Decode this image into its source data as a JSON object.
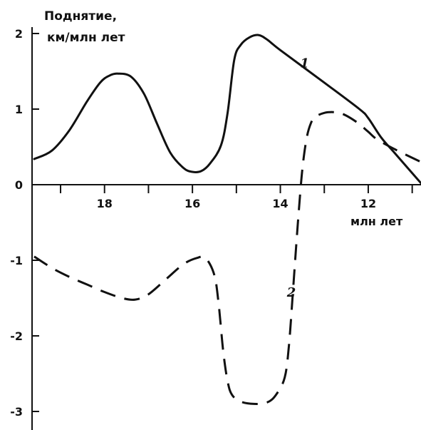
{
  "chart_data": {
    "type": "line",
    "ylabel_line1": "Поднятие,",
    "ylabel_line2": "км/млн лет",
    "xlabel": "млн лет",
    "xlim": [
      19.6,
      10.8
    ],
    "ylim": [
      -3.4,
      2.2
    ],
    "x_ticks": [
      18,
      16,
      14,
      12
    ],
    "x_tick_labels": [
      "18",
      "16",
      "14",
      "12"
    ],
    "x_minor_ticks": [
      19,
      17,
      15,
      13,
      11
    ],
    "y_ticks": [
      2,
      1,
      0,
      -1,
      -2,
      -3
    ],
    "y_tick_labels": [
      "2",
      "1",
      "0",
      "-1",
      "-2",
      "-3"
    ],
    "series": [
      {
        "name": "1",
        "style": "solid",
        "color": "#111111",
        "x": [
          19.6,
          19.2,
          18.8,
          18.4,
          18.1,
          17.9,
          17.7,
          17.4,
          17.1,
          16.8,
          16.5,
          16.2,
          16.0,
          15.8,
          15.6,
          15.35,
          15.2,
          15.05,
          14.9,
          14.7,
          14.5,
          14.3,
          14.0,
          13.0,
          12.2,
          12.0,
          11.7,
          11.4,
          10.8
        ],
        "y": [
          0.34,
          0.45,
          0.72,
          1.1,
          1.35,
          1.44,
          1.47,
          1.43,
          1.2,
          0.8,
          0.42,
          0.22,
          0.17,
          0.18,
          0.28,
          0.52,
          0.95,
          1.65,
          1.85,
          1.95,
          1.98,
          1.92,
          1.78,
          1.35,
          1.0,
          0.88,
          0.62,
          0.42,
          0.02
        ]
      },
      {
        "name": "2",
        "style": "dashed",
        "color": "#111111",
        "x": [
          19.6,
          19.2,
          18.8,
          18.4,
          18.0,
          17.6,
          17.3,
          17.0,
          16.6,
          16.2,
          15.9,
          15.7,
          15.5,
          15.4,
          15.3,
          15.2,
          15.1,
          14.9,
          14.6,
          14.3,
          14.1,
          13.9,
          13.8,
          13.7,
          13.6,
          13.5,
          13.4,
          13.3,
          13.2,
          13.0,
          12.8,
          12.6,
          12.4,
          12.2,
          12.0,
          11.8,
          11.4,
          10.8
        ],
        "y": [
          -0.95,
          -1.1,
          -1.22,
          -1.32,
          -1.42,
          -1.5,
          -1.52,
          -1.45,
          -1.25,
          -1.05,
          -0.97,
          -0.97,
          -1.2,
          -1.6,
          -2.2,
          -2.6,
          -2.78,
          -2.87,
          -2.9,
          -2.88,
          -2.78,
          -2.55,
          -2.1,
          -1.3,
          -0.5,
          0.2,
          0.62,
          0.82,
          0.9,
          0.95,
          0.96,
          0.94,
          0.88,
          0.8,
          0.7,
          0.6,
          0.47,
          0.3
        ]
      }
    ],
    "annotations": [
      {
        "text": "1",
        "x": 13.55,
        "y": 1.55
      },
      {
        "text": "2",
        "x": 13.85,
        "y": -1.48
      }
    ]
  }
}
